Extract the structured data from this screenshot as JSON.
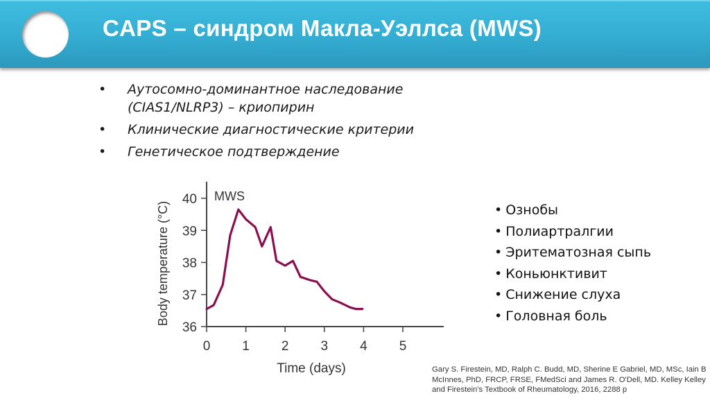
{
  "slide": {
    "title": "CAPS – синдром Макла-Уэллса (MWS)",
    "accent_color": "#36b0d5",
    "bullets": [
      {
        "text": "Аутосомно-доминантное наследование (CIAS1/NLRP3) – криопирин"
      },
      {
        "text": "Клинические диагностические критерии"
      },
      {
        "text": "Генетическое подтверждение"
      }
    ],
    "bullet_glyph": "•",
    "symptoms": [
      "Ознобы",
      "Полиартралгии",
      "Эритематозная сыпь",
      "Коньюнктивит",
      "Снижение слуха",
      "Головная боль"
    ],
    "citation": "Gary S. Firestein, MD, Ralph C. Budd, MD, Sherine E Gabriel, MD, MSc, Iain B McInnes, PhD, FRCP, FRSE, FMedSci and James R. O'Dell, MD. Kelley Kelley and Firestein's Textbook of Rheumatology, 2016, 2288 p"
  },
  "chart_data": {
    "type": "line",
    "title": "",
    "annotation": "MWS",
    "xlabel": "Time (days)",
    "ylabel": "Body temperature (°C)",
    "xlim": [
      0,
      5.6
    ],
    "ylim": [
      36,
      40.5
    ],
    "x_ticks": [
      0,
      1,
      2,
      3,
      4,
      5
    ],
    "y_ticks": [
      36,
      37,
      38,
      39,
      40
    ],
    "grid": false,
    "legend": null,
    "line_color": "#8b0f4e",
    "series": [
      {
        "name": "MWS",
        "x": [
          0,
          0.18,
          0.41,
          0.6,
          0.81,
          1.0,
          1.24,
          1.41,
          1.63,
          1.78,
          2.0,
          2.2,
          2.39,
          2.63,
          2.81,
          3.0,
          3.2,
          3.4,
          3.65,
          3.8,
          3.97
        ],
        "y": [
          36.55,
          36.67,
          37.3,
          38.85,
          39.65,
          39.35,
          39.1,
          38.5,
          39.1,
          38.05,
          37.9,
          38.05,
          37.55,
          37.45,
          37.4,
          37.1,
          36.85,
          36.75,
          36.6,
          36.55,
          36.55
        ]
      }
    ]
  }
}
